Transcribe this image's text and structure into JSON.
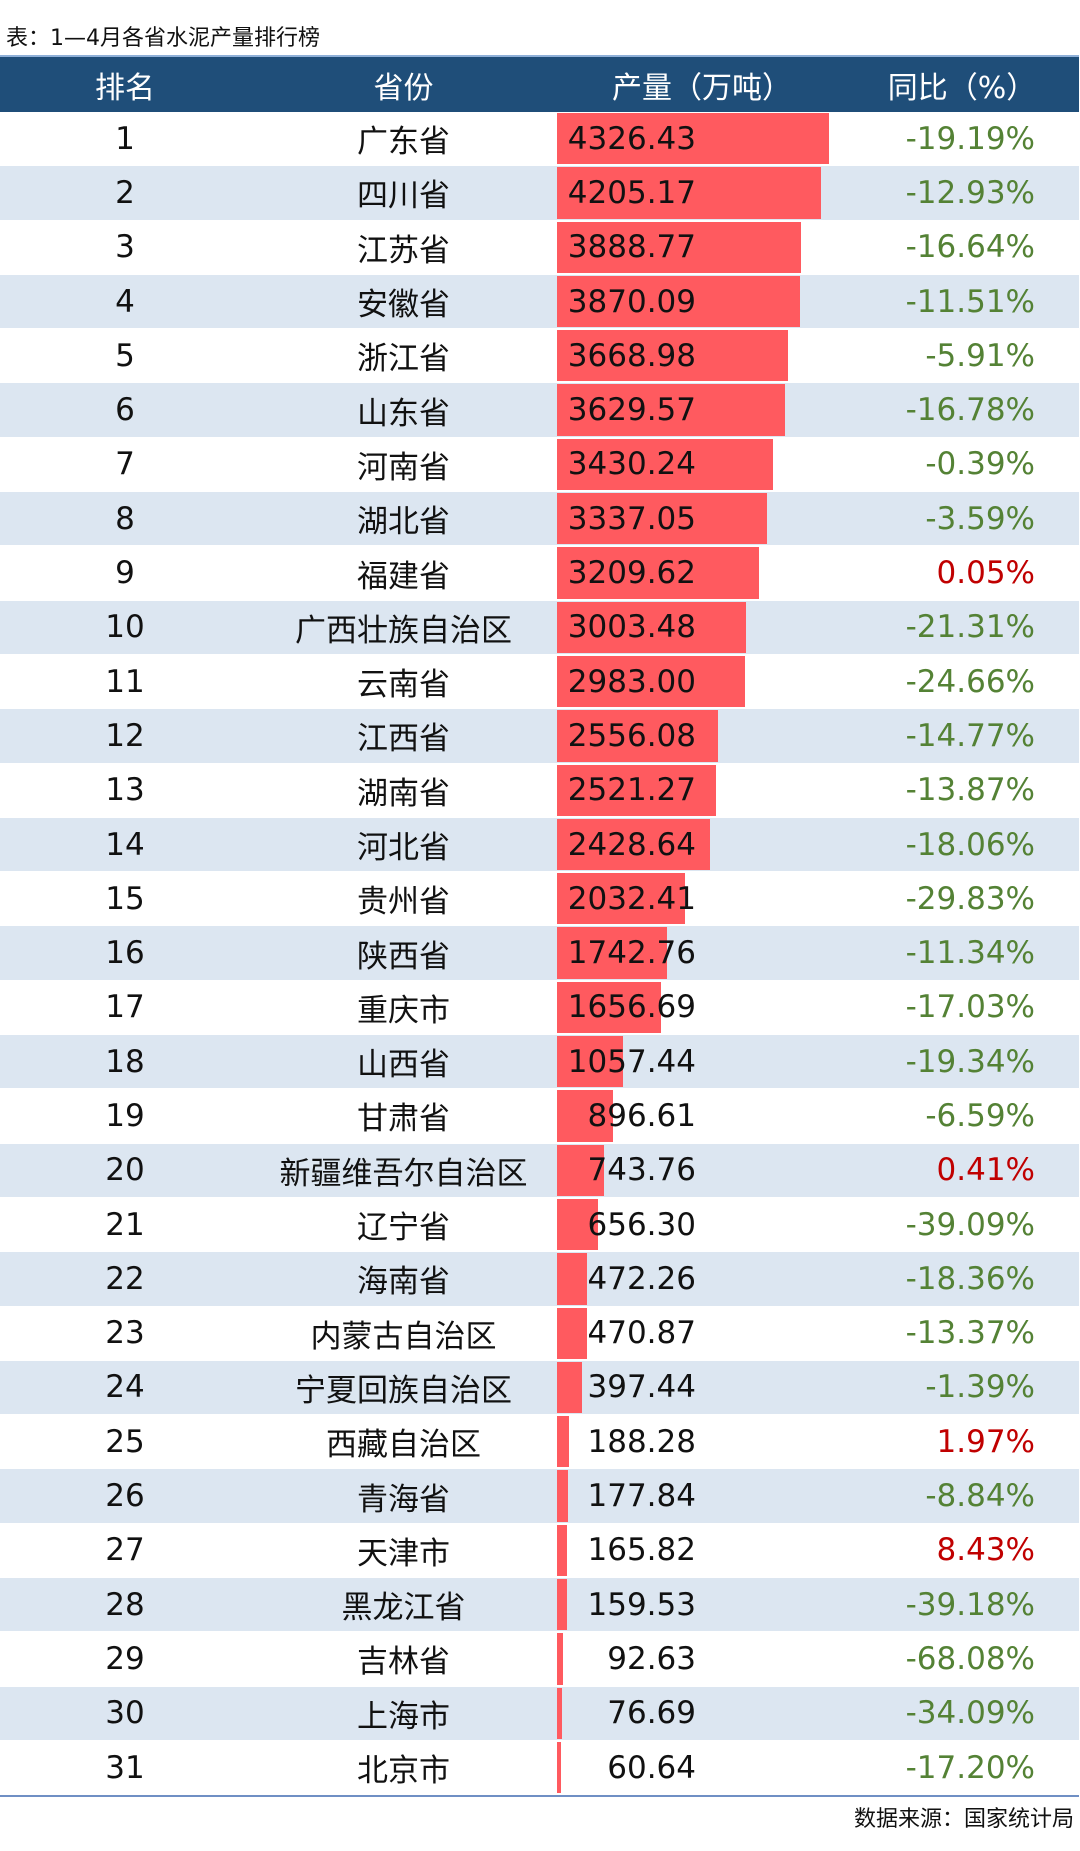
{
  "title": "表：1—4月各省水泥产量排行榜",
  "source": "数据来源：国家统计局",
  "colors": {
    "header_bg": "#1f4e79",
    "alt_row": "#dce6f1",
    "bar": "#ff5a5f",
    "negative": "#548235",
    "positive": "#c00000"
  },
  "chart_data": {
    "type": "table",
    "columns": [
      "排名",
      "省份",
      "产量（万吨）",
      "同比（%）"
    ],
    "rows": [
      {
        "rank": "1",
        "province": "广东省",
        "output": "4326.43",
        "yoy": "-19.19%"
      },
      {
        "rank": "2",
        "province": "四川省",
        "output": "4205.17",
        "yoy": "-12.93%"
      },
      {
        "rank": "3",
        "province": "江苏省",
        "output": "3888.77",
        "yoy": "-16.64%"
      },
      {
        "rank": "4",
        "province": "安徽省",
        "output": "3870.09",
        "yoy": "-11.51%"
      },
      {
        "rank": "5",
        "province": "浙江省",
        "output": "3668.98",
        "yoy": "-5.91%"
      },
      {
        "rank": "6",
        "province": "山东省",
        "output": "3629.57",
        "yoy": "-16.78%"
      },
      {
        "rank": "7",
        "province": "河南省",
        "output": "3430.24",
        "yoy": "-0.39%"
      },
      {
        "rank": "8",
        "province": "湖北省",
        "output": "3337.05",
        "yoy": "-3.59%"
      },
      {
        "rank": "9",
        "province": "福建省",
        "output": "3209.62",
        "yoy": "0.05%"
      },
      {
        "rank": "10",
        "province": "广西壮族自治区",
        "output": "3003.48",
        "yoy": "-21.31%"
      },
      {
        "rank": "11",
        "province": "云南省",
        "output": "2983.00",
        "yoy": "-24.66%"
      },
      {
        "rank": "12",
        "province": "江西省",
        "output": "2556.08",
        "yoy": "-14.77%"
      },
      {
        "rank": "13",
        "province": "湖南省",
        "output": "2521.27",
        "yoy": "-13.87%"
      },
      {
        "rank": "14",
        "province": "河北省",
        "output": "2428.64",
        "yoy": "-18.06%"
      },
      {
        "rank": "15",
        "province": "贵州省",
        "output": "2032.41",
        "yoy": "-29.83%"
      },
      {
        "rank": "16",
        "province": "陕西省",
        "output": "1742.76",
        "yoy": "-11.34%"
      },
      {
        "rank": "17",
        "province": "重庆市",
        "output": "1656.69",
        "yoy": "-17.03%"
      },
      {
        "rank": "18",
        "province": "山西省",
        "output": "1057.44",
        "yoy": "-19.34%"
      },
      {
        "rank": "19",
        "province": "甘肃省",
        "output": "896.61",
        "yoy": "-6.59%"
      },
      {
        "rank": "20",
        "province": "新疆维吾尔自治区",
        "output": "743.76",
        "yoy": "0.41%"
      },
      {
        "rank": "21",
        "province": "辽宁省",
        "output": "656.30",
        "yoy": "-39.09%"
      },
      {
        "rank": "22",
        "province": "海南省",
        "output": "472.26",
        "yoy": "-18.36%"
      },
      {
        "rank": "23",
        "province": "内蒙古自治区",
        "output": "470.87",
        "yoy": "-13.37%"
      },
      {
        "rank": "24",
        "province": "宁夏回族自治区",
        "output": "397.44",
        "yoy": "-1.39%"
      },
      {
        "rank": "25",
        "province": "西藏自治区",
        "output": "188.28",
        "yoy": "1.97%"
      },
      {
        "rank": "26",
        "province": "青海省",
        "output": "177.84",
        "yoy": "-8.84%"
      },
      {
        "rank": "27",
        "province": "天津市",
        "output": "165.82",
        "yoy": "8.43%"
      },
      {
        "rank": "28",
        "province": "黑龙江省",
        "output": "159.53",
        "yoy": "-39.18%"
      },
      {
        "rank": "29",
        "province": "吉林省",
        "output": "92.63",
        "yoy": "-68.08%"
      },
      {
        "rank": "30",
        "province": "上海市",
        "output": "76.69",
        "yoy": "-34.09%"
      },
      {
        "rank": "31",
        "province": "北京市",
        "output": "60.64",
        "yoy": "-17.20%"
      }
    ]
  }
}
